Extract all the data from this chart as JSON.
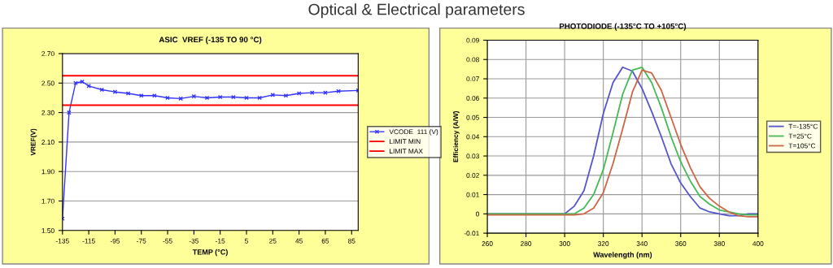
{
  "chart_data": [
    {
      "type": "line",
      "title": "ASIC  VREF (-135 TO 90 °C)",
      "annotations": [
        "Optical & Electrical parameters"
      ],
      "xlabel": "TEMP (°C)",
      "ylabel": "VREF(V)",
      "xlim": [
        -135,
        90
      ],
      "xticks": [
        -135,
        -115,
        -95,
        -75,
        -55,
        -35,
        -15,
        5,
        25,
        45,
        65,
        85
      ],
      "ylim": [
        1.5,
        2.7
      ],
      "yticks": [
        {
          "value": 1.5,
          "label": "1.50"
        },
        {
          "value": 1.7,
          "label": "1.70"
        },
        {
          "value": 1.9,
          "label": "1.90"
        },
        {
          "value": 2.1,
          "label": "2.10"
        },
        {
          "value": 2.3,
          "label": "2.30"
        },
        {
          "value": 2.5,
          "label": "2.50"
        },
        {
          "value": 2.7,
          "label": "2.70"
        }
      ],
      "grid": "y",
      "legend": "right",
      "marker": "cross",
      "series": [
        {
          "name": "VCODE  111 (V)",
          "color": "#3333ff",
          "x": [
            -135,
            -130,
            -125,
            -120,
            -115,
            -105,
            -95,
            -85,
            -75,
            -65,
            -55,
            -45,
            -35,
            -25,
            -15,
            -5,
            5,
            15,
            25,
            35,
            45,
            55,
            65,
            75,
            90
          ],
          "values": [
            1.58,
            2.3,
            2.5,
            2.51,
            2.48,
            2.455,
            2.44,
            2.43,
            2.415,
            2.415,
            2.4,
            2.395,
            2.41,
            2.4,
            2.405,
            2.405,
            2.4,
            2.4,
            2.42,
            2.415,
            2.43,
            2.435,
            2.435,
            2.445,
            2.45
          ]
        },
        {
          "name": "LIMIT MIN",
          "color": "#ff0000",
          "marker": "none",
          "x": [
            -135,
            90
          ],
          "values": [
            2.35,
            2.35
          ]
        },
        {
          "name": "LIMIT MAX",
          "color": "#ff0000",
          "marker": "none",
          "x": [
            -135,
            90
          ],
          "values": [
            2.55,
            2.55
          ]
        }
      ]
    },
    {
      "type": "line",
      "title": "PHOTODIODE (-135°C TO +105°C)",
      "xlabel": "Wavelength (nm)",
      "ylabel": "Efficiency (A/W)",
      "xlim": [
        260,
        400
      ],
      "xticks": [
        260,
        280,
        300,
        320,
        340,
        360,
        380,
        400
      ],
      "ylim": [
        -0.01,
        0.09
      ],
      "yticks": [
        -0.01,
        0,
        0.01,
        0.02,
        0.03,
        0.04,
        0.05,
        0.06,
        0.07,
        0.08,
        0.09
      ],
      "grid": true,
      "legend": "right",
      "marker": "none",
      "series": [
        {
          "name": "T=-135°C",
          "color": "#5555cc",
          "x": [
            260,
            300,
            305,
            310,
            315,
            320,
            325,
            330,
            335,
            340,
            345,
            350,
            355,
            360,
            365,
            370,
            375,
            380,
            385,
            390,
            395,
            400
          ],
          "values": [
            0,
            0,
            0.004,
            0.012,
            0.03,
            0.052,
            0.068,
            0.076,
            0.074,
            0.065,
            0.053,
            0.04,
            0.026,
            0.016,
            0.009,
            0.003,
            0.001,
            0,
            -0.001,
            -0.001,
            0,
            0
          ]
        },
        {
          "name": "T=25°C",
          "color": "#44bb55",
          "x": [
            260,
            300,
            305,
            310,
            315,
            320,
            325,
            330,
            335,
            340,
            345,
            350,
            355,
            360,
            365,
            370,
            375,
            380,
            385,
            390,
            395,
            400
          ],
          "values": [
            0,
            0,
            0,
            0.003,
            0.01,
            0.023,
            0.042,
            0.062,
            0.0745,
            0.076,
            0.068,
            0.055,
            0.04,
            0.027,
            0.017,
            0.009,
            0.005,
            0.002,
            0.001,
            0,
            -0.0005,
            -0.0005
          ]
        },
        {
          "name": "T=105°C",
          "color": "#cc6644",
          "x": [
            260,
            305,
            310,
            315,
            320,
            325,
            330,
            335,
            340,
            345,
            350,
            355,
            360,
            365,
            370,
            375,
            380,
            385,
            390,
            395,
            400
          ],
          "values": [
            -0.0005,
            -0.0005,
            0,
            0.003,
            0.011,
            0.026,
            0.044,
            0.063,
            0.0745,
            0.073,
            0.064,
            0.05,
            0.036,
            0.024,
            0.014,
            0.008,
            0.004,
            0.001,
            -0.001,
            -0.0015,
            -0.0015
          ]
        }
      ]
    }
  ]
}
